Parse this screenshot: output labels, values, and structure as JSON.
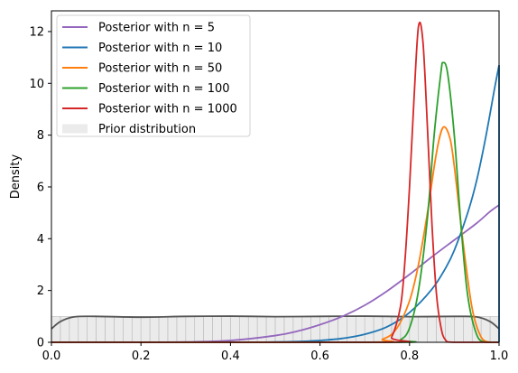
{
  "chart_data": {
    "type": "line",
    "title": "",
    "xlabel": "",
    "ylabel": "Density",
    "xlim": [
      0,
      1
    ],
    "ylim": [
      0,
      12.8
    ],
    "xticks": [
      "0.0",
      "0.2",
      "0.4",
      "0.6",
      "0.8",
      "1.0"
    ],
    "yticks": [
      "0",
      "2",
      "4",
      "6",
      "8",
      "10",
      "12"
    ],
    "legend_position": "top-left",
    "grid": false,
    "series": [
      {
        "name": "Posterior with n = 5",
        "color": "#9467bd",
        "peak_x": 1.0,
        "peak_y": 5.3,
        "points": [
          [
            0.0,
            0.0
          ],
          [
            0.2,
            0.0
          ],
          [
            0.3,
            0.01
          ],
          [
            0.4,
            0.07
          ],
          [
            0.5,
            0.26
          ],
          [
            0.55,
            0.43
          ],
          [
            0.6,
            0.68
          ],
          [
            0.65,
            1.0
          ],
          [
            0.7,
            1.43
          ],
          [
            0.75,
            1.98
          ],
          [
            0.8,
            2.62
          ],
          [
            0.85,
            3.3
          ],
          [
            0.9,
            3.95
          ],
          [
            0.95,
            4.6
          ],
          [
            0.98,
            5.05
          ],
          [
            1.0,
            5.3
          ]
        ]
      },
      {
        "name": "Posterior with n = 10",
        "color": "#1f77b4",
        "peak_x": 1.0,
        "peak_y": 10.7,
        "points": [
          [
            0.0,
            0.0
          ],
          [
            0.4,
            0.0
          ],
          [
            0.5,
            0.01
          ],
          [
            0.55,
            0.03
          ],
          [
            0.6,
            0.07
          ],
          [
            0.65,
            0.15
          ],
          [
            0.7,
            0.31
          ],
          [
            0.75,
            0.6
          ],
          [
            0.8,
            1.15
          ],
          [
            0.85,
            2.05
          ],
          [
            0.88,
            2.85
          ],
          [
            0.9,
            3.55
          ],
          [
            0.93,
            5.0
          ],
          [
            0.95,
            6.25
          ],
          [
            0.97,
            7.9
          ],
          [
            0.99,
            9.8
          ],
          [
            1.0,
            10.7
          ]
        ]
      },
      {
        "name": "Posterior with n = 50",
        "color": "#ff7f0e",
        "peak_x": 0.875,
        "peak_y": 8.3,
        "points": [
          [
            0.0,
            0.0
          ],
          [
            0.7,
            0.0
          ],
          [
            0.74,
            0.12
          ],
          [
            0.77,
            0.5
          ],
          [
            0.8,
            1.6
          ],
          [
            0.82,
            3.0
          ],
          [
            0.84,
            5.0
          ],
          [
            0.86,
            7.3
          ],
          [
            0.875,
            8.3
          ],
          [
            0.89,
            7.9
          ],
          [
            0.9,
            6.8
          ],
          [
            0.92,
            3.8
          ],
          [
            0.94,
            1.3
          ],
          [
            0.96,
            0.2
          ],
          [
            0.98,
            0.0
          ],
          [
            1.0,
            0.0
          ]
        ]
      },
      {
        "name": "Posterior with n = 100",
        "color": "#2ca02c",
        "peak_x": 0.875,
        "peak_y": 10.8,
        "points": [
          [
            0.0,
            0.0
          ],
          [
            0.75,
            0.0
          ],
          [
            0.78,
            0.1
          ],
          [
            0.8,
            0.55
          ],
          [
            0.82,
            2.0
          ],
          [
            0.84,
            4.8
          ],
          [
            0.855,
            8.0
          ],
          [
            0.87,
            10.4
          ],
          [
            0.875,
            10.8
          ],
          [
            0.885,
            10.4
          ],
          [
            0.9,
            8.0
          ],
          [
            0.915,
            4.5
          ],
          [
            0.93,
            1.8
          ],
          [
            0.95,
            0.3
          ],
          [
            0.97,
            0.0
          ],
          [
            1.0,
            0.0
          ]
        ]
      },
      {
        "name": "Posterior with n = 1000",
        "color": "#d62728",
        "peak_x": 0.82,
        "peak_y": 12.2,
        "points": [
          [
            0.0,
            0.0
          ],
          [
            0.74,
            0.0
          ],
          [
            0.76,
            0.2
          ],
          [
            0.78,
            1.4
          ],
          [
            0.79,
            3.2
          ],
          [
            0.8,
            6.0
          ],
          [
            0.81,
            9.4
          ],
          [
            0.82,
            12.2
          ],
          [
            0.83,
            11.6
          ],
          [
            0.84,
            8.3
          ],
          [
            0.85,
            4.6
          ],
          [
            0.86,
            1.9
          ],
          [
            0.87,
            0.6
          ],
          [
            0.88,
            0.1
          ],
          [
            0.9,
            0.0
          ],
          [
            1.0,
            0.0
          ]
        ]
      }
    ],
    "prior": {
      "name": "Prior distribution",
      "fill_color": "#d3d3d3",
      "line_color": "#555555",
      "points": [
        [
          0.0,
          0.52
        ],
        [
          0.02,
          0.8
        ],
        [
          0.05,
          0.98
        ],
        [
          0.1,
          1.0
        ],
        [
          0.2,
          0.97
        ],
        [
          0.3,
          1.0
        ],
        [
          0.4,
          1.01
        ],
        [
          0.5,
          0.99
        ],
        [
          0.6,
          1.0
        ],
        [
          0.7,
          1.01
        ],
        [
          0.8,
          0.99
        ],
        [
          0.9,
          1.0
        ],
        [
          0.95,
          0.98
        ],
        [
          0.98,
          0.8
        ],
        [
          1.0,
          0.52
        ]
      ]
    }
  }
}
